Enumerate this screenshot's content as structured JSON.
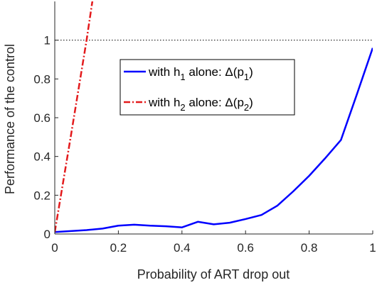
{
  "chart_data": {
    "type": "line",
    "xlabel": "Probability of ART drop out",
    "ylabel": "Performance of the control",
    "xlim": [
      0,
      1
    ],
    "ylim": [
      0,
      1.2
    ],
    "x_ticks": [
      "0",
      "0.2",
      "0.4",
      "0.6",
      "0.8",
      "1"
    ],
    "y_ticks": [
      "0",
      "0.2",
      "0.4",
      "0.6",
      "0.8",
      "1"
    ],
    "grid": false,
    "legend_position": "upper-center",
    "reference_line": {
      "y": 1,
      "style": "dotted",
      "color": "#000000"
    },
    "series": [
      {
        "legend": {
          "prefix": "with h",
          "sub": "1",
          "mid": " alone: Δ(p",
          "sub2": "1",
          "suffix": ")"
        },
        "color": "#0000ff",
        "style": "solid",
        "x": [
          0,
          0.05,
          0.1,
          0.15,
          0.2,
          0.25,
          0.3,
          0.35,
          0.4,
          0.45,
          0.5,
          0.55,
          0.6,
          0.65,
          0.7,
          0.75,
          0.8,
          0.85,
          0.9,
          0.95,
          1.0
        ],
        "values": [
          0.01,
          0.015,
          0.02,
          0.028,
          0.043,
          0.048,
          0.043,
          0.04,
          0.034,
          0.063,
          0.05,
          0.058,
          0.077,
          0.098,
          0.146,
          0.22,
          0.3,
          0.39,
          0.485,
          0.72,
          0.96
        ]
      },
      {
        "legend": {
          "prefix": "with h",
          "sub": "2",
          "mid": " alone: Δ(p",
          "sub2": "2",
          "suffix": ")"
        },
        "color": "#e31a1c",
        "style": "dashdot",
        "x": [
          0,
          0.05,
          0.1,
          0.12
        ],
        "values": [
          0.01,
          0.5,
          1.0,
          1.22
        ]
      }
    ]
  }
}
